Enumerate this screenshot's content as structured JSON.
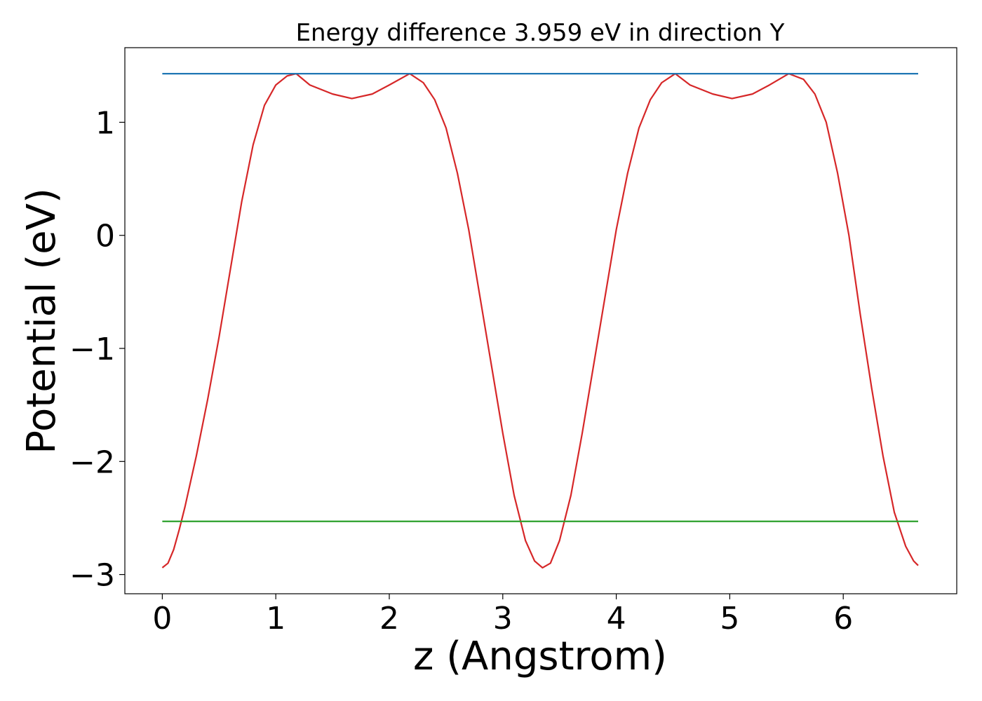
{
  "chart_data": {
    "type": "line",
    "title": "Energy difference 3.959 eV in direction Y",
    "xlabel": "z (Angstrom)",
    "ylabel": "Potential (eV)",
    "xlim": [
      -0.33,
      7.0
    ],
    "ylim": [
      -3.17,
      1.66
    ],
    "xticks": [
      0,
      1,
      2,
      3,
      4,
      5,
      6
    ],
    "yticks": [
      -3,
      -2,
      -1,
      0,
      1
    ],
    "xtick_labels": [
      "0",
      "1",
      "2",
      "3",
      "4",
      "5",
      "6"
    ],
    "ytick_labels": [
      "−3",
      "−2",
      "−1",
      "0",
      "1"
    ],
    "grid": false,
    "series": [
      {
        "color": "#d62728",
        "x": [
          0,
          0.05,
          0.1,
          0.15,
          0.2,
          0.3,
          0.4,
          0.5,
          0.6,
          0.7,
          0.8,
          0.9,
          1.0,
          1.1,
          1.18,
          1.3,
          1.5,
          1.67,
          1.85,
          2.0,
          2.18,
          2.3,
          2.4,
          2.5,
          2.6,
          2.7,
          2.8,
          2.9,
          3.0,
          3.1,
          3.2,
          3.28,
          3.35,
          3.42,
          3.5,
          3.6,
          3.7,
          3.8,
          3.9,
          4.0,
          4.1,
          4.2,
          4.3,
          4.4,
          4.52,
          4.65,
          4.85,
          5.02,
          5.2,
          5.35,
          5.52,
          5.65,
          5.75,
          5.85,
          5.95,
          6.05,
          6.15,
          6.25,
          6.35,
          6.45,
          6.55,
          6.62,
          6.66
        ],
        "y": [
          -2.94,
          -2.9,
          -2.78,
          -2.6,
          -2.4,
          -1.95,
          -1.45,
          -0.9,
          -0.3,
          0.3,
          0.8,
          1.15,
          1.33,
          1.41,
          1.43,
          1.33,
          1.25,
          1.21,
          1.25,
          1.33,
          1.43,
          1.35,
          1.2,
          0.95,
          0.55,
          0.05,
          -0.55,
          -1.15,
          -1.75,
          -2.3,
          -2.7,
          -2.88,
          -2.94,
          -2.9,
          -2.7,
          -2.3,
          -1.75,
          -1.15,
          -0.55,
          0.05,
          0.55,
          0.95,
          1.2,
          1.35,
          1.43,
          1.33,
          1.25,
          1.21,
          1.25,
          1.33,
          1.43,
          1.38,
          1.25,
          1.0,
          0.55,
          0.0,
          -0.7,
          -1.35,
          -1.95,
          -2.45,
          -2.75,
          -2.88,
          -2.92
        ]
      },
      {
        "color": "#1f77b4",
        "x": [
          0,
          6.66
        ],
        "y": [
          1.43,
          1.43
        ]
      },
      {
        "color": "#2ca02c",
        "x": [
          0,
          6.66
        ],
        "y": [
          -2.53,
          -2.53
        ]
      }
    ]
  }
}
